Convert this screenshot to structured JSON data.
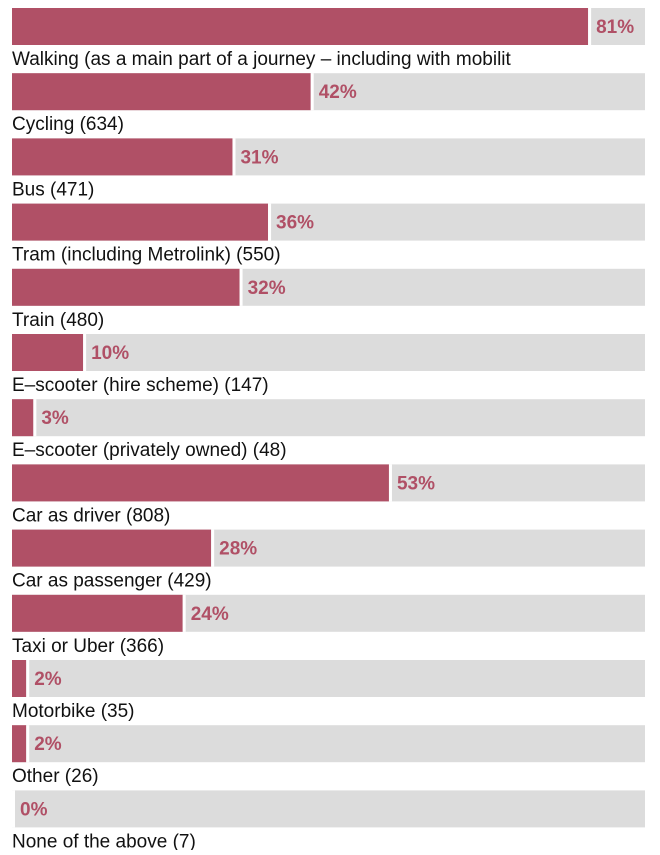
{
  "chart_data": {
    "type": "bar",
    "orientation": "horizontal",
    "categories": [
      "Walking (as a main part of a journey – including with mobilit",
      "Cycling (634)",
      "Bus (471)",
      "Tram (including Metrolink) (550)",
      "Train (480)",
      "E–scooter (hire scheme) (147)",
      "E–scooter (privately owned) (48)",
      "Car as driver (808)",
      "Car as passenger (429)",
      "Taxi or Uber (366)",
      "Motorbike (35)",
      "Other (26)",
      "None of the above (7)"
    ],
    "values": [
      81,
      42,
      31,
      36,
      32,
      10,
      3,
      53,
      28,
      24,
      2,
      2,
      0
    ],
    "value_labels": [
      "81%",
      "42%",
      "31%",
      "36%",
      "32%",
      "10%",
      "3%",
      "53%",
      "28%",
      "24%",
      "2%",
      "2%",
      "0%"
    ],
    "color": "#b05066",
    "track_color": "#dcdcdc",
    "xlim": [
      0,
      89
    ]
  }
}
